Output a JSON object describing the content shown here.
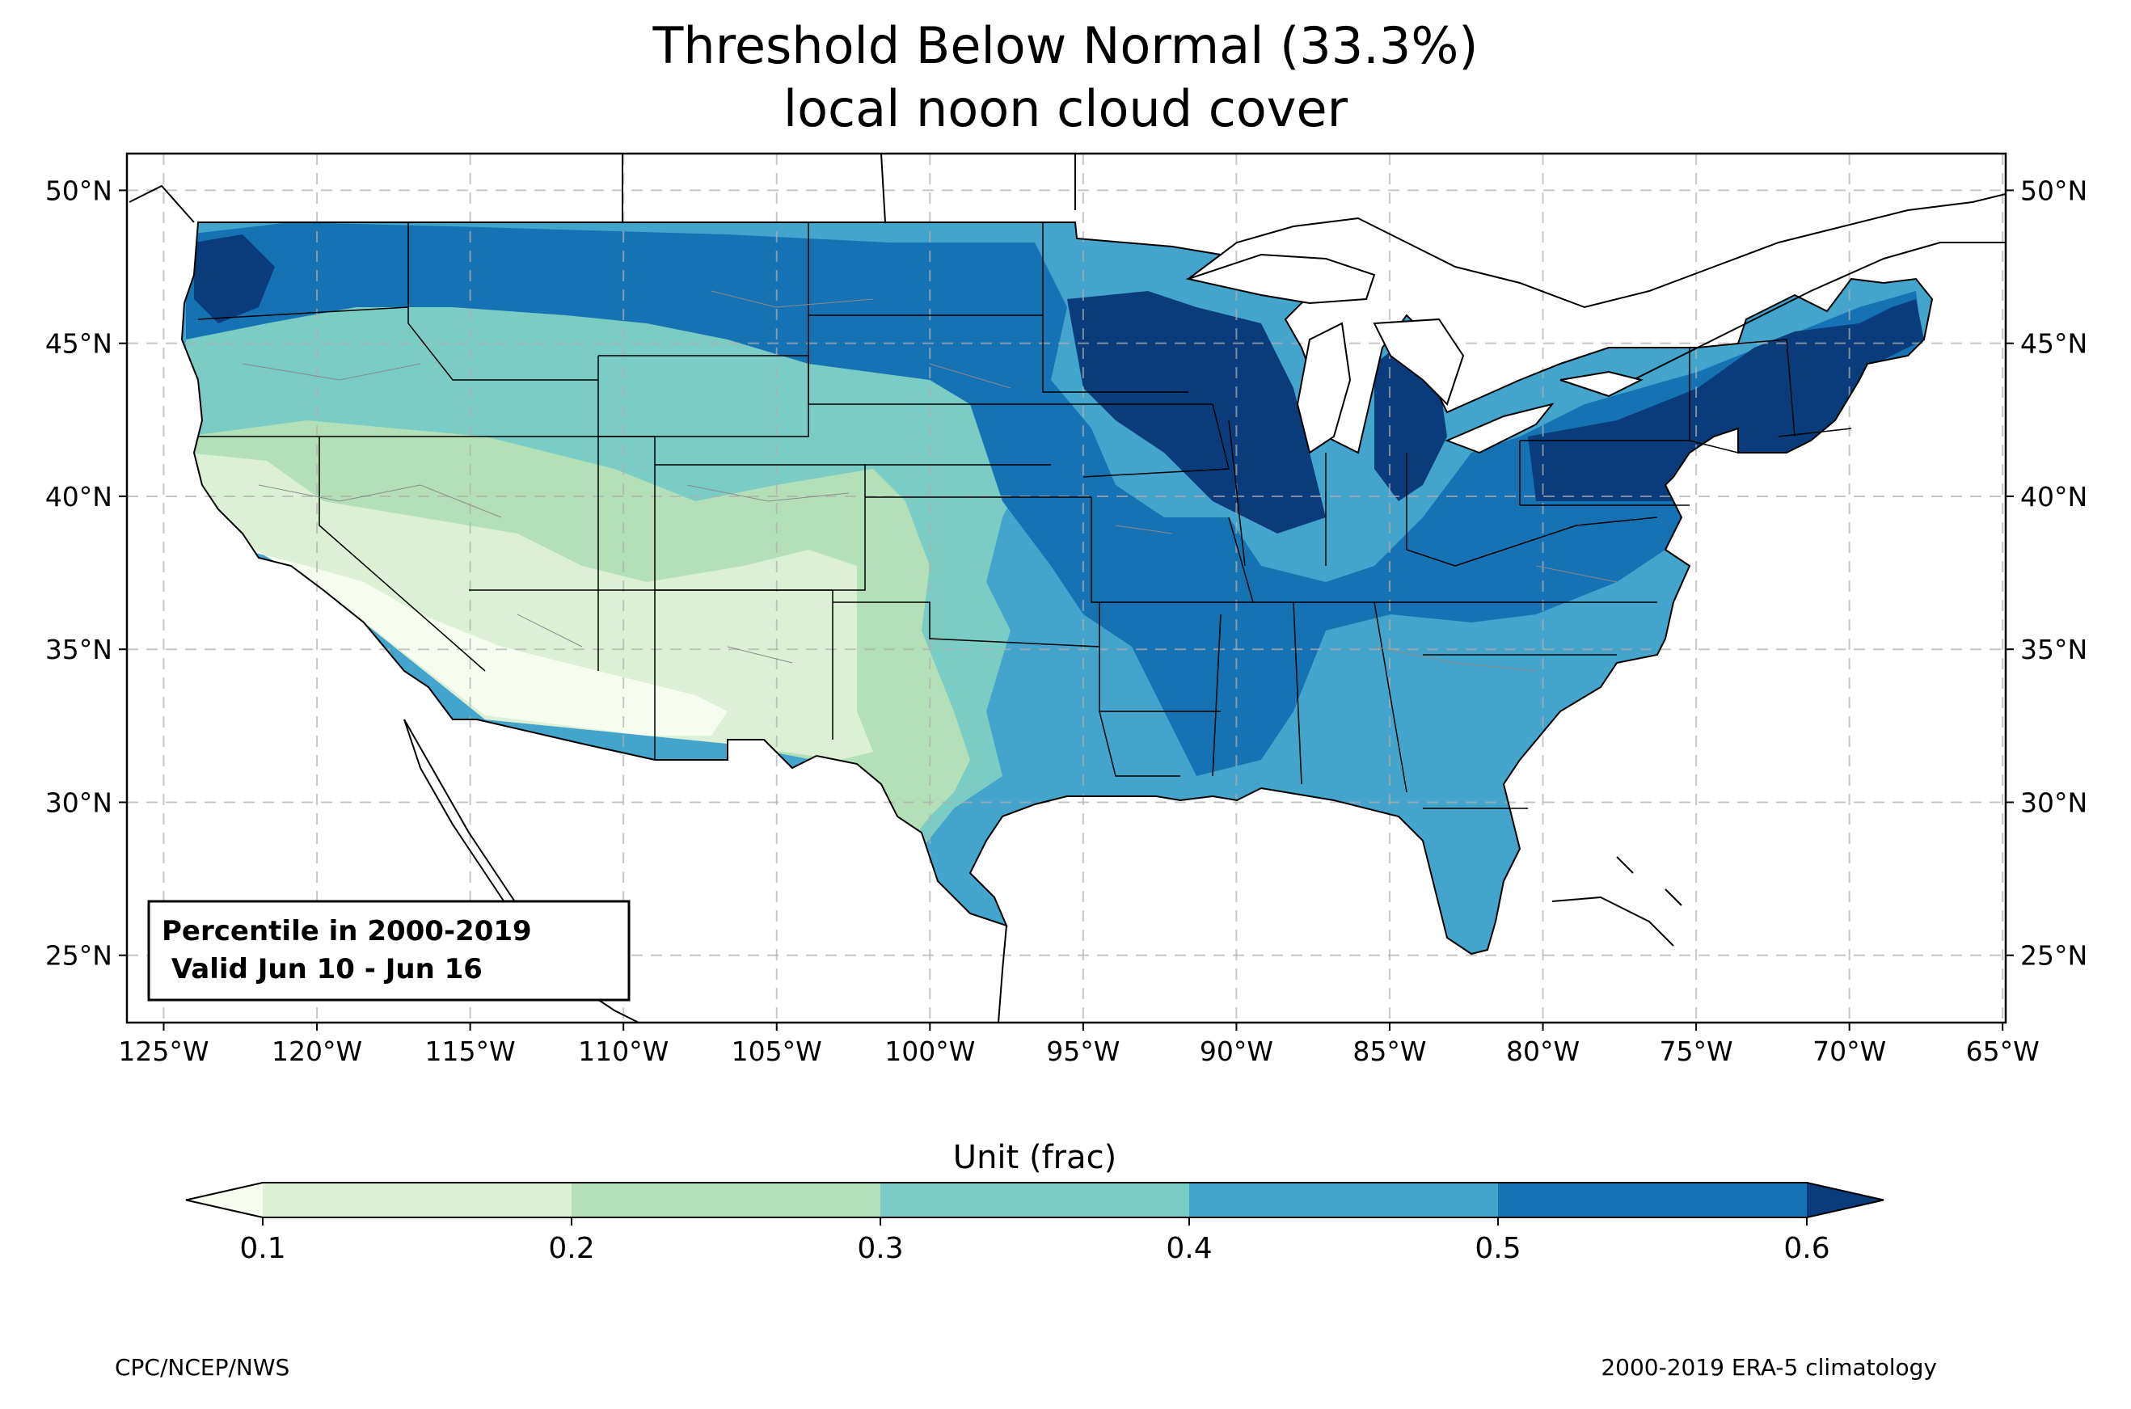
{
  "title": {
    "line1": "Threshold Below Normal (33.3%)",
    "line2": "local noon cloud cover"
  },
  "map": {
    "region": "Contiguous United States",
    "lon_range": [
      -126.2,
      -64.9
    ],
    "lat_range": [
      22.8,
      51.2
    ],
    "gridlines": true,
    "lon_ticks": [
      {
        "value": -125,
        "label": "125°W"
      },
      {
        "value": -120,
        "label": "120°W"
      },
      {
        "value": -115,
        "label": "115°W"
      },
      {
        "value": -110,
        "label": "110°W"
      },
      {
        "value": -105,
        "label": "105°W"
      },
      {
        "value": -100,
        "label": "100°W"
      },
      {
        "value": -95,
        "label": "95°W"
      },
      {
        "value": -90,
        "label": "90°W"
      },
      {
        "value": -85,
        "label": "85°W"
      },
      {
        "value": -80,
        "label": "80°W"
      },
      {
        "value": -75,
        "label": "75°W"
      },
      {
        "value": -70,
        "label": "70°W"
      },
      {
        "value": -65,
        "label": "65°W"
      }
    ],
    "lat_ticks": [
      {
        "value": 50,
        "label": "50°N"
      },
      {
        "value": 45,
        "label": "45°N"
      },
      {
        "value": 40,
        "label": "40°N"
      },
      {
        "value": 35,
        "label": "35°N"
      },
      {
        "value": 30,
        "label": "30°N"
      },
      {
        "value": 25,
        "label": "25°N"
      }
    ]
  },
  "info_box": {
    "line1": "Percentile in 2000-2019",
    "line2": " Valid Jun 10 - Jun 16"
  },
  "colorbar": {
    "label": "Unit (frac)",
    "levels": [
      {
        "min": null,
        "max": 0.1,
        "color": "#f7fcf0"
      },
      {
        "min": 0.1,
        "max": 0.2,
        "color": "#dcf0d5"
      },
      {
        "min": 0.2,
        "max": 0.3,
        "color": "#b3e0b9"
      },
      {
        "min": 0.3,
        "max": 0.4,
        "color": "#7accc4"
      },
      {
        "min": 0.4,
        "max": 0.5,
        "color": "#43a5cc"
      },
      {
        "min": 0.5,
        "max": 0.6,
        "color": "#1673b3"
      },
      {
        "min": 0.6,
        "max": null,
        "color": "#0a3c7c"
      }
    ],
    "tick_labels": [
      "0.1",
      "0.2",
      "0.3",
      "0.4",
      "0.5",
      "0.6"
    ]
  },
  "footer": {
    "left": "CPC/NCEP/NWS",
    "right": "2000-2019 ERA-5 climatology"
  }
}
